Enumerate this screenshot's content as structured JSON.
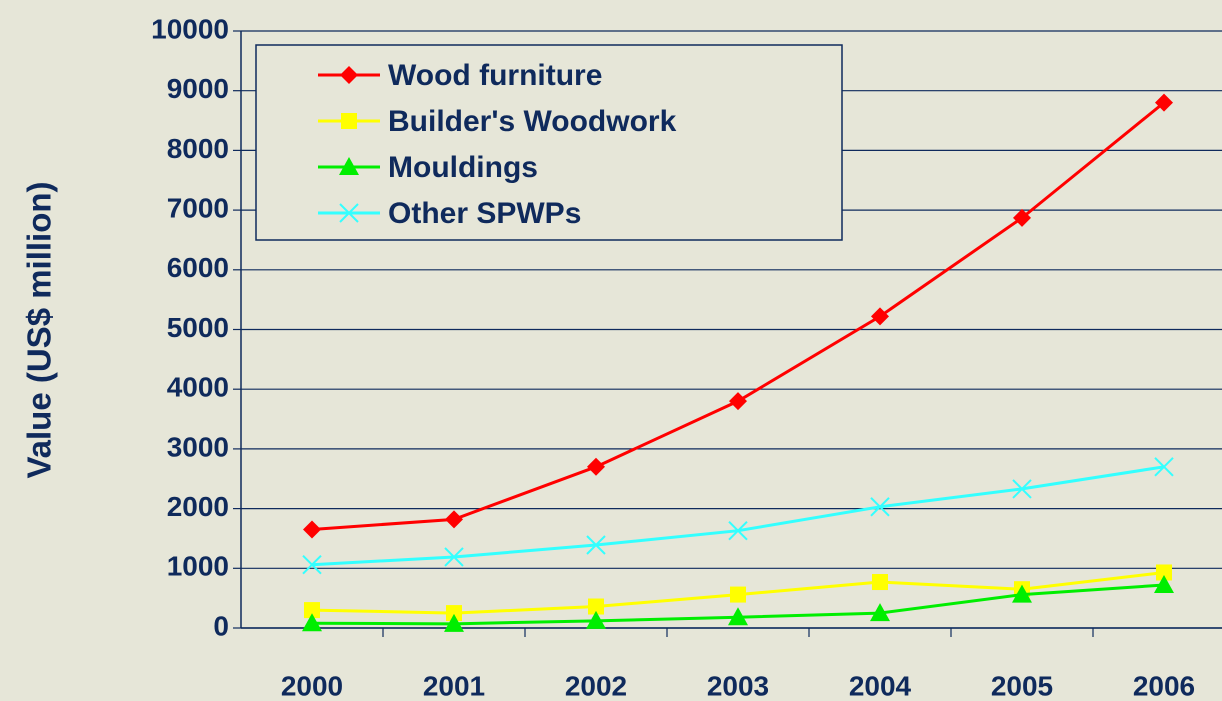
{
  "chart_data": {
    "type": "line",
    "ylabel": "Value (US$ million)",
    "categories": [
      "2000",
      "2001",
      "2002",
      "2003",
      "2004",
      "2005",
      "2006"
    ],
    "series": [
      {
        "name": "Wood furniture",
        "color": "#ff0000",
        "marker": "diamond",
        "values": [
          1650,
          1820,
          2700,
          3800,
          5220,
          6870,
          8800
        ]
      },
      {
        "name": "Builder's Woodwork",
        "color": "#ffff00",
        "marker": "square",
        "values": [
          300,
          250,
          360,
          560,
          770,
          650,
          930
        ]
      },
      {
        "name": "Mouldings",
        "color": "#00ee00",
        "marker": "triangle",
        "values": [
          80,
          70,
          120,
          180,
          250,
          560,
          720
        ]
      },
      {
        "name": "Other SPWPs",
        "color": "#33ffff",
        "marker": "x",
        "values": [
          1060,
          1190,
          1390,
          1630,
          2030,
          2330,
          2700
        ]
      }
    ],
    "ylim": [
      0,
      10000
    ],
    "yticks": [
      0,
      1000,
      2000,
      3000,
      4000,
      5000,
      6000,
      7000,
      8000,
      9000,
      10000
    ],
    "grid": true,
    "legend": "upper left"
  }
}
